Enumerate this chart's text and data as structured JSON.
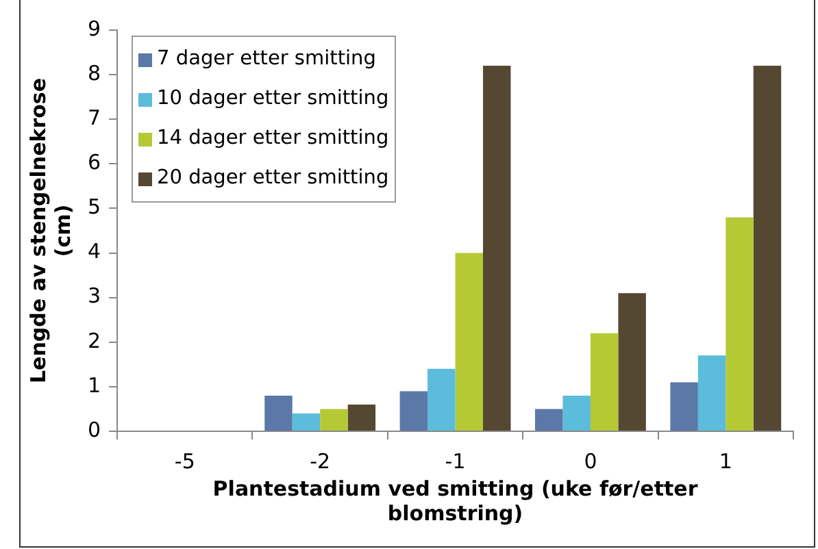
{
  "chart_data": {
    "type": "bar",
    "xlabel": "Plantestadium ved smitting (uke før/etter blomstring)",
    "ylabel": "Lengde av stengelnekrose (cm)",
    "categories": [
      "-5",
      "-2",
      "-1",
      "0",
      "1"
    ],
    "series": [
      {
        "name": "7 dager etter smitting",
        "color": "#5b78a8",
        "values": [
          0,
          0.8,
          0.9,
          0.5,
          1.1
        ]
      },
      {
        "name": "10 dager etter smitting",
        "color": "#5bbcdc",
        "values": [
          0,
          0.4,
          1.4,
          0.8,
          1.7
        ]
      },
      {
        "name": "14 dager etter smitting",
        "color": "#b5c935",
        "values": [
          0,
          0.5,
          4.0,
          2.2,
          4.8
        ]
      },
      {
        "name": "20 dager etter smitting",
        "color": "#554832",
        "values": [
          0,
          0.6,
          8.2,
          3.1,
          8.2
        ]
      }
    ],
    "ylim": [
      0,
      9
    ],
    "yticks": [
      0,
      1,
      2,
      3,
      4,
      5,
      6,
      7,
      8,
      9
    ],
    "grid": false,
    "legend": "top left"
  }
}
